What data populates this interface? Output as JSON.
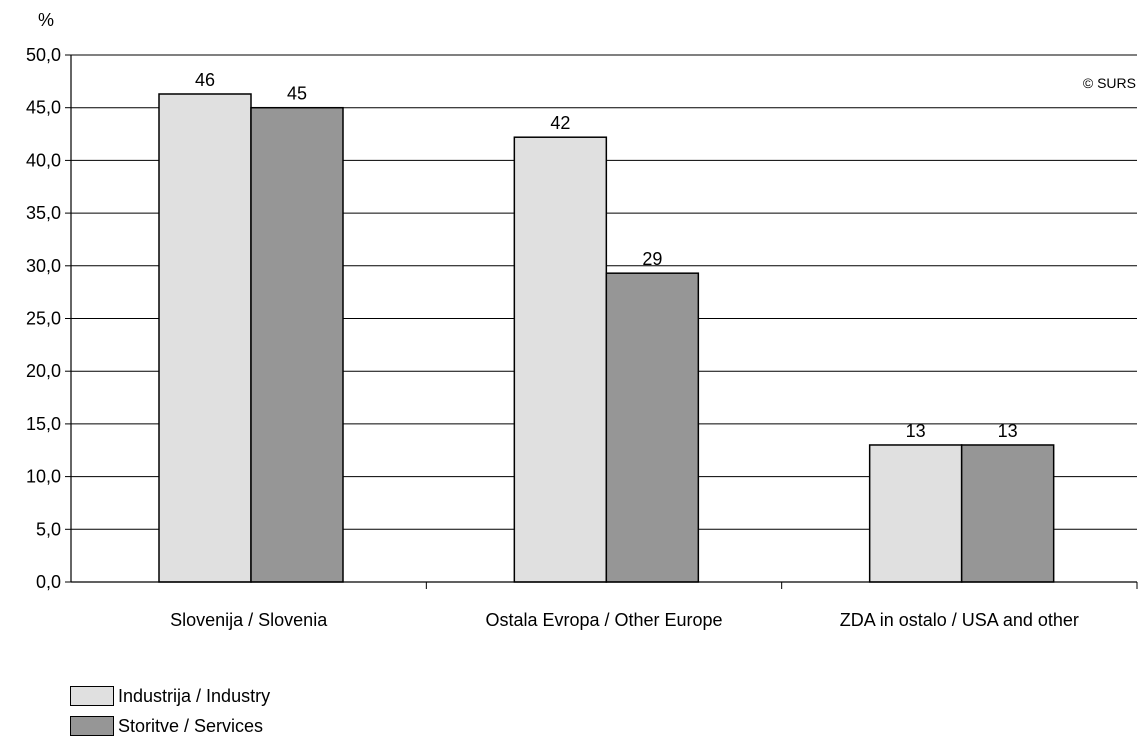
{
  "chart_data": {
    "type": "bar",
    "ylabel": "%",
    "ylim": [
      0,
      50
    ],
    "yticks": [
      "0,0",
      "5,0",
      "10,0",
      "15,0",
      "20,0",
      "25,0",
      "30,0",
      "35,0",
      "40,0",
      "45,0",
      "50,0"
    ],
    "categories": [
      "Slovenija / Slovenia",
      "Ostala Evropa / Other Europe",
      "ZDA in ostalo / USA and other"
    ],
    "series": [
      {
        "name": "Industrija / Industry",
        "values": [
          46.3,
          42.2,
          13.0
        ],
        "labels": [
          "46",
          "42",
          "13"
        ],
        "color": "#e0e0e0"
      },
      {
        "name": "Storitve / Services",
        "values": [
          45.0,
          29.3,
          13.0
        ],
        "labels": [
          "45",
          "29",
          "13"
        ],
        "color": "#969696"
      }
    ],
    "grid": true,
    "legend_position": "bottom-left",
    "watermark": "© SURS"
  }
}
